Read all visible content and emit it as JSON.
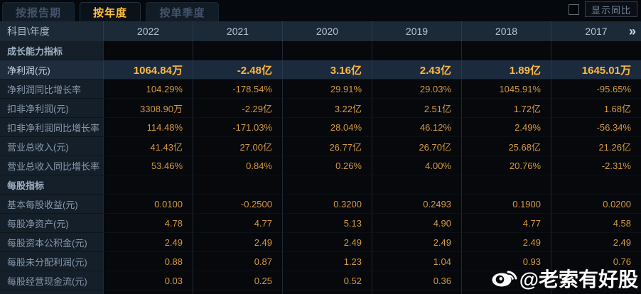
{
  "tabs": [
    {
      "label": "按报告期",
      "active": false
    },
    {
      "label": "按年度",
      "active": true
    },
    {
      "label": "按单季度",
      "active": false
    }
  ],
  "controls": {
    "show_yoy_label": "显示同比",
    "checkbox_checked": false
  },
  "table": {
    "corner_header": "科目\\年度",
    "years": [
      "2022",
      "2021",
      "2020",
      "2019",
      "2018",
      "2017"
    ],
    "more_icon": "»",
    "rows": [
      {
        "type": "section",
        "highlight": false,
        "label": "成长能力指标",
        "values": [
          "",
          "",
          "",
          "",
          "",
          ""
        ]
      },
      {
        "type": "data",
        "highlight": true,
        "label": "净利润(元)",
        "values": [
          "1064.84万",
          "-2.48亿",
          "3.16亿",
          "2.43亿",
          "1.89亿",
          "1645.01万"
        ]
      },
      {
        "type": "data",
        "highlight": false,
        "label": "净利润同比增长率",
        "values": [
          "104.29%",
          "-178.54%",
          "29.91%",
          "29.03%",
          "1045.91%",
          "-95.65%"
        ]
      },
      {
        "type": "data",
        "highlight": false,
        "label": "扣非净利润(元)",
        "values": [
          "3308.90万",
          "-2.29亿",
          "3.22亿",
          "2.51亿",
          "1.72亿",
          "1.68亿"
        ]
      },
      {
        "type": "data",
        "highlight": false,
        "label": "扣非净利润同比增长率",
        "values": [
          "114.48%",
          "-171.03%",
          "28.04%",
          "46.12%",
          "2.49%",
          "-56.34%"
        ]
      },
      {
        "type": "data",
        "highlight": false,
        "label": "营业总收入(元)",
        "values": [
          "41.43亿",
          "27.00亿",
          "26.77亿",
          "26.70亿",
          "25.68亿",
          "21.26亿"
        ]
      },
      {
        "type": "data",
        "highlight": false,
        "label": "营业总收入同比增长率",
        "values": [
          "53.46%",
          "0.84%",
          "0.26%",
          "4.00%",
          "20.76%",
          "-2.31%"
        ]
      },
      {
        "type": "section",
        "highlight": false,
        "label": "每股指标",
        "values": [
          "",
          "",
          "",
          "",
          "",
          ""
        ]
      },
      {
        "type": "data",
        "highlight": false,
        "label": "基本每股收益(元)",
        "values": [
          "0.0100",
          "-0.2500",
          "0.3200",
          "0.2493",
          "0.1900",
          "0.0200"
        ]
      },
      {
        "type": "data",
        "highlight": false,
        "label": "每股净资产(元)",
        "values": [
          "4.78",
          "4.77",
          "5.13",
          "4.90",
          "4.77",
          "4.58"
        ]
      },
      {
        "type": "data",
        "highlight": false,
        "label": "每股资本公积金(元)",
        "values": [
          "2.49",
          "2.49",
          "2.49",
          "2.49",
          "2.49",
          "2.49"
        ]
      },
      {
        "type": "data",
        "highlight": false,
        "label": "每股未分配利润(元)",
        "values": [
          "0.88",
          "0.87",
          "1.23",
          "1.04",
          "0.93",
          "0.76"
        ]
      },
      {
        "type": "data",
        "highlight": false,
        "label": "每股经营现金流(元)",
        "values": [
          "0.03",
          "0.25",
          "0.52",
          "0.36",
          "",
          ""
        ]
      }
    ]
  },
  "watermark": {
    "text": "@老索有好股",
    "icon": "weibo-icon"
  },
  "colors": {
    "accent_value": "#d49940",
    "highlight_value": "#ffb843",
    "active_tab_text": "#ffc03a",
    "header_bg": "#1c2936",
    "label_col_bg": "#151f2a",
    "highlight_row_bg": "#1b2a3c"
  }
}
